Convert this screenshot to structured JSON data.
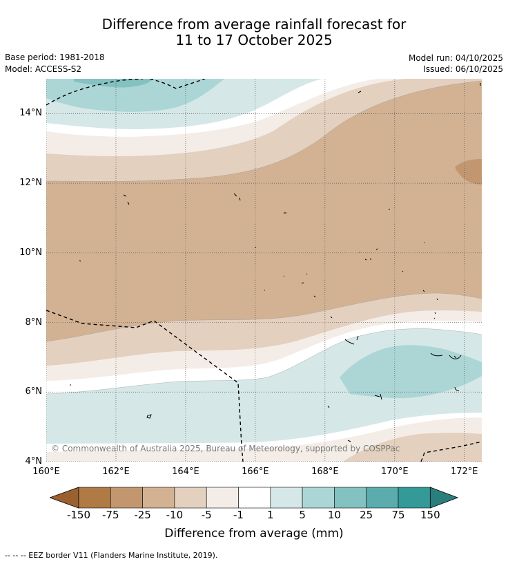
{
  "title": {
    "line1": "Difference from average rainfall forecast for",
    "line2": "11 to 17 October 2025"
  },
  "meta": {
    "base_period": "Base period: 1981-2018",
    "model": "Model: ACCESS-S2",
    "model_run": "Model run: 04/10/2025",
    "issued": "Issued: 06/10/2025"
  },
  "map": {
    "lon_range": [
      160,
      172.5
    ],
    "lat_range": [
      4,
      15
    ],
    "lon_ticks": [
      {
        "value": 160,
        "label": "160°E"
      },
      {
        "value": 162,
        "label": "162°E"
      },
      {
        "value": 164,
        "label": "164°E"
      },
      {
        "value": 166,
        "label": "166°E"
      },
      {
        "value": 168,
        "label": "168°E"
      },
      {
        "value": 170,
        "label": "170°E"
      },
      {
        "value": 172,
        "label": "172°E"
      }
    ],
    "lat_ticks": [
      {
        "value": 4,
        "label": "4°N"
      },
      {
        "value": 6,
        "label": "6°N"
      },
      {
        "value": 8,
        "label": "8°N"
      },
      {
        "value": 10,
        "label": "10°N"
      },
      {
        "value": 12,
        "label": "12°N"
      },
      {
        "value": 14,
        "label": "14°N"
      }
    ],
    "copyright": "© Commonwealth of Australia 2025, Bureau of Meteorology, supported by COSPPac"
  },
  "colorbar": {
    "title": "Difference from average (mm)",
    "labels": [
      "-150",
      "-75",
      "-25",
      "-10",
      "-5",
      "-1",
      "1",
      "5",
      "10",
      "25",
      "75",
      "150"
    ],
    "colors": {
      "lt_neg150": "#9a602f",
      "neg150_75": "#b07a45",
      "neg75_25": "#c29770",
      "neg25_10": "#d2b293",
      "neg10_5": "#e3d0be",
      "neg5_1": "#f4ede7",
      "neg1_1": "#ffffff",
      "p1_5": "#d5e8e7",
      "p5_10": "#acd6d6",
      "p10_25": "#84c1c1",
      "p25_75": "#5aadac",
      "p75_150": "#339a98",
      "gt_150": "#2a7f7d"
    }
  },
  "footer": {
    "legend": "--  --  -- EEZ border V11 (Flanders Marine Institute, 2019)."
  }
}
